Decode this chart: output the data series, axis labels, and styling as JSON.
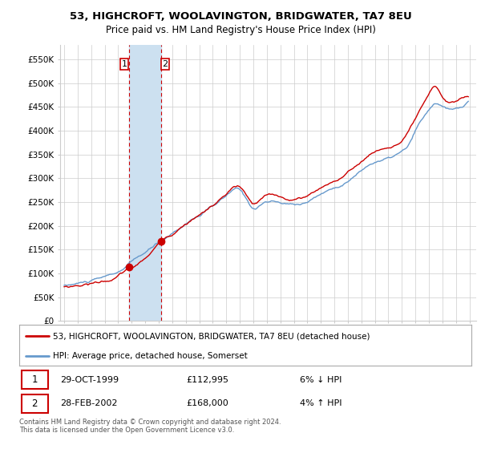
{
  "title": "53, HIGHCROFT, WOOLAVINGTON, BRIDGWATER, TA7 8EU",
  "subtitle": "Price paid vs. HM Land Registry's House Price Index (HPI)",
  "ylabel_ticks": [
    "£0",
    "£50K",
    "£100K",
    "£150K",
    "£200K",
    "£250K",
    "£300K",
    "£350K",
    "£400K",
    "£450K",
    "£500K",
    "£550K"
  ],
  "ytick_values": [
    0,
    50000,
    100000,
    150000,
    200000,
    250000,
    300000,
    350000,
    400000,
    450000,
    500000,
    550000
  ],
  "ylim": [
    0,
    580000
  ],
  "legend_line1": "53, HIGHCROFT, WOOLAVINGTON, BRIDGWATER, TA7 8EU (detached house)",
  "legend_line2": "HPI: Average price, detached house, Somerset",
  "transaction1_date": "29-OCT-1999",
  "transaction1_price": "£112,995",
  "transaction1_hpi": "6% ↓ HPI",
  "transaction2_date": "28-FEB-2002",
  "transaction2_price": "£168,000",
  "transaction2_hpi": "4% ↑ HPI",
  "footer": "Contains HM Land Registry data © Crown copyright and database right 2024.\nThis data is licensed under the Open Government Licence v3.0.",
  "color_red": "#cc0000",
  "color_blue": "#6699cc",
  "color_highlight": "#cce0f0",
  "grid_color": "#cccccc",
  "background_color": "#ffffff",
  "transaction1_x": 1999.833,
  "transaction1_y": 112995,
  "transaction2_x": 2002.167,
  "transaction2_y": 168000,
  "shade_x1": 1999.833,
  "shade_x2": 2002.167,
  "xlim_left": 1994.7,
  "xlim_right": 2025.5
}
